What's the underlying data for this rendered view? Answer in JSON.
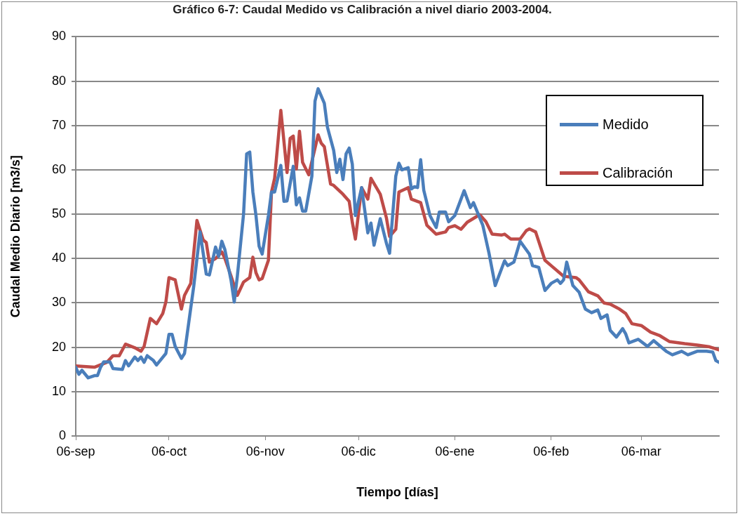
{
  "chart_data": {
    "type": "line",
    "title": "Gráfico 6-7: Caudal Medido vs Calibración a nivel diario 2003-2004.",
    "xlabel": "Tiempo [días]",
    "ylabel": "Caudal Medio Diario [m3/s]",
    "xlim": [
      "2003-09-06",
      "2004-03-31"
    ],
    "xticks": [
      {
        "value": "2003-09-06",
        "label": "06-sep"
      },
      {
        "value": "2003-10-06",
        "label": "06-oct"
      },
      {
        "value": "2003-11-06",
        "label": "06-nov"
      },
      {
        "value": "2003-12-06",
        "label": "06-dic"
      },
      {
        "value": "2004-01-06",
        "label": "06-ene"
      },
      {
        "value": "2004-02-06",
        "label": "06-feb"
      },
      {
        "value": "2004-03-06",
        "label": "06-mar"
      }
    ],
    "ylim": [
      0,
      90
    ],
    "yticks": [
      0,
      10,
      20,
      30,
      40,
      50,
      60,
      70,
      80,
      90
    ],
    "grid": "y",
    "legend": "top right",
    "marker": "none",
    "line_style": "solid",
    "series": [
      {
        "name": "Medido",
        "color": "#4a7ebb",
        "x": [
          "2003-09-06",
          "2003-09-07",
          "2003-09-08",
          "2003-09-10",
          "2003-09-12",
          "2003-09-13",
          "2003-09-14",
          "2003-09-15",
          "2003-09-17",
          "2003-09-18",
          "2003-09-21",
          "2003-09-22",
          "2003-09-23",
          "2003-09-25",
          "2003-09-26",
          "2003-09-27",
          "2003-09-28",
          "2003-09-29",
          "2003-10-01",
          "2003-10-02",
          "2003-10-05",
          "2003-10-06",
          "2003-10-07",
          "2003-10-08",
          "2003-10-10",
          "2003-10-11",
          "2003-10-14",
          "2003-10-16",
          "2003-10-18",
          "2003-10-19",
          "2003-10-21",
          "2003-10-22",
          "2003-10-23",
          "2003-10-24",
          "2003-10-26",
          "2003-10-27",
          "2003-10-28",
          "2003-10-30",
          "2003-10-31",
          "2003-11-01",
          "2003-11-02",
          "2003-11-03",
          "2003-11-04",
          "2003-11-05",
          "2003-11-07",
          "2003-11-08",
          "2003-11-09",
          "2003-11-11",
          "2003-11-12",
          "2003-11-13",
          "2003-11-15",
          "2003-11-16",
          "2003-11-17",
          "2003-11-18",
          "2003-11-19",
          "2003-11-21",
          "2003-11-22",
          "2003-11-23",
          "2003-11-25",
          "2003-11-26",
          "2003-11-28",
          "2003-11-29",
          "2003-11-30",
          "2003-12-01",
          "2003-12-02",
          "2003-12-03",
          "2003-12-04",
          "2003-12-05",
          "2003-12-07",
          "2003-12-09",
          "2003-12-10",
          "2003-12-11",
          "2003-12-13",
          "2003-12-15",
          "2003-12-16",
          "2003-12-18",
          "2003-12-19",
          "2003-12-20",
          "2003-12-22",
          "2003-12-23",
          "2003-12-24",
          "2003-12-25",
          "2003-12-26",
          "2003-12-27",
          "2003-12-29",
          "2003-12-31",
          "2004-01-01",
          "2004-01-03",
          "2004-01-04",
          "2004-01-06",
          "2004-01-09",
          "2004-01-11",
          "2004-01-12",
          "2004-01-15",
          "2004-01-17",
          "2004-01-19",
          "2004-01-22",
          "2004-01-23",
          "2004-01-25",
          "2004-01-27",
          "2004-01-30",
          "2004-01-31",
          "2004-02-02",
          "2004-02-04",
          "2004-02-06",
          "2004-02-08",
          "2004-02-09",
          "2004-02-10",
          "2004-02-11",
          "2004-02-13",
          "2004-02-15",
          "2004-02-17",
          "2004-02-19",
          "2004-02-21",
          "2004-02-22",
          "2004-02-24",
          "2004-02-25",
          "2004-02-27",
          "2004-02-29",
          "2004-03-01",
          "2004-03-02",
          "2004-03-05",
          "2004-03-08",
          "2004-03-10",
          "2004-03-14",
          "2004-03-16",
          "2004-03-19",
          "2004-03-21",
          "2004-03-24",
          "2004-03-27",
          "2004-03-29",
          "2004-03-30",
          "2004-03-31"
        ],
        "values": [
          15.5,
          13.9,
          14.8,
          13.1,
          13.6,
          13.6,
          15.5,
          16.7,
          16.7,
          15.2,
          15,
          17,
          15.8,
          17.8,
          17,
          17.8,
          16.6,
          18.1,
          17,
          16,
          18.6,
          22.9,
          22.9,
          20.2,
          17.5,
          18.6,
          33.9,
          46,
          36.5,
          36.3,
          42.6,
          40.5,
          43.9,
          42,
          35,
          30.2,
          36,
          50,
          63.6,
          64,
          55,
          49.7,
          42.8,
          41,
          49.7,
          55,
          55,
          61,
          52.9,
          53,
          60.8,
          52.1,
          53.7,
          50.7,
          50.7,
          58.6,
          75.5,
          78.3,
          75,
          69.6,
          64.4,
          59.4,
          62.4,
          57.8,
          63.6,
          64.9,
          61.3,
          49.7,
          56,
          45.8,
          48,
          43,
          49,
          43.4,
          41.2,
          58.6,
          61.5,
          60,
          60.5,
          55.7,
          56.2,
          56,
          62.3,
          55.4,
          49.7,
          47,
          50.5,
          50.5,
          48.3,
          49.7,
          55.3,
          51.5,
          52.6,
          47.5,
          41.2,
          33.9,
          39.5,
          38.4,
          39.2,
          43.9,
          41,
          38.4,
          38,
          32.8,
          34.4,
          35.2,
          34.4,
          35.2,
          39.2,
          33.9,
          32.4,
          28.6,
          27.8,
          28.4,
          26.5,
          27.3,
          23.8,
          22.3,
          24.2,
          23,
          21,
          21.8,
          20.2,
          21.5,
          19.1,
          18.3,
          19.1,
          18.3,
          19.1,
          19.1,
          18.9,
          17,
          16.6
        ]
      },
      {
        "name": "Calibración",
        "color": "#be4b48",
        "x": [
          "2003-09-06",
          "2003-09-12",
          "2003-09-16",
          "2003-09-18",
          "2003-09-20",
          "2003-09-22",
          "2003-09-25",
          "2003-09-27",
          "2003-09-28",
          "2003-09-30",
          "2003-10-02",
          "2003-10-04",
          "2003-10-05",
          "2003-10-06",
          "2003-10-08",
          "2003-10-10",
          "2003-10-11",
          "2003-10-13",
          "2003-10-15",
          "2003-10-17",
          "2003-10-18",
          "2003-10-19",
          "2003-10-21",
          "2003-10-23",
          "2003-10-24",
          "2003-10-26",
          "2003-10-28",
          "2003-10-30",
          "2003-11-01",
          "2003-11-02",
          "2003-11-03",
          "2003-11-04",
          "2003-11-05",
          "2003-11-07",
          "2003-11-08",
          "2003-11-09",
          "2003-11-11",
          "2003-11-13",
          "2003-11-14",
          "2003-11-15",
          "2003-11-16",
          "2003-11-17",
          "2003-11-18",
          "2003-11-20",
          "2003-11-23",
          "2003-11-24",
          "2003-11-25",
          "2003-11-27",
          "2003-11-28",
          "2003-12-01",
          "2003-12-03",
          "2003-12-04",
          "2003-12-05",
          "2003-12-07",
          "2003-12-09",
          "2003-12-10",
          "2003-12-13",
          "2003-12-15",
          "2003-12-16",
          "2003-12-18",
          "2003-12-19",
          "2003-12-22",
          "2003-12-23",
          "2003-12-26",
          "2003-12-28",
          "2003-12-31",
          "2004-01-03",
          "2004-01-04",
          "2004-01-06",
          "2004-01-08",
          "2004-01-10",
          "2004-01-14",
          "2004-01-16",
          "2004-01-18",
          "2004-01-21",
          "2004-01-22",
          "2004-01-24",
          "2004-01-27",
          "2004-01-29",
          "2004-01-30",
          "2004-02-01",
          "2004-02-04",
          "2004-02-06",
          "2004-02-10",
          "2004-02-14",
          "2004-02-15",
          "2004-02-18",
          "2004-02-21",
          "2004-02-23",
          "2004-02-25",
          "2004-02-28",
          "2004-03-01",
          "2004-03-03",
          "2004-03-06",
          "2004-03-09",
          "2004-03-12",
          "2004-03-15",
          "2004-03-20",
          "2004-03-24",
          "2004-03-28",
          "2004-03-31"
        ],
        "values": [
          15.8,
          15.5,
          16.6,
          18.1,
          18.1,
          20.7,
          19.9,
          19.1,
          20.2,
          26.5,
          25.3,
          27.6,
          30.2,
          35.7,
          35.2,
          28.6,
          31.7,
          34.4,
          48.6,
          44.2,
          43.6,
          39.2,
          40,
          41.5,
          40,
          36,
          31.7,
          34.7,
          35.7,
          40.3,
          36.8,
          35.2,
          35.5,
          39.6,
          55,
          58.1,
          73.4,
          59.4,
          67.1,
          67.6,
          60.2,
          68.7,
          61.7,
          58.9,
          67.9,
          66,
          65.2,
          56.8,
          56.5,
          54.5,
          52.9,
          48.2,
          44.4,
          56,
          53.4,
          58.1,
          54.5,
          49.1,
          45,
          46.6,
          55,
          56,
          53.4,
          52.6,
          47.5,
          45.5,
          46,
          47,
          47.4,
          46.6,
          48.2,
          49.9,
          48.3,
          45.5,
          45.3,
          45.5,
          44.4,
          44.4,
          46.3,
          46.7,
          46,
          39.6,
          38.4,
          36,
          35.7,
          35.2,
          32.5,
          31.6,
          30,
          29.7,
          28.6,
          27.6,
          25.3,
          24.9,
          23.4,
          22.6,
          21.3,
          20.8,
          20.5,
          20.1,
          19.4
        ]
      }
    ]
  }
}
